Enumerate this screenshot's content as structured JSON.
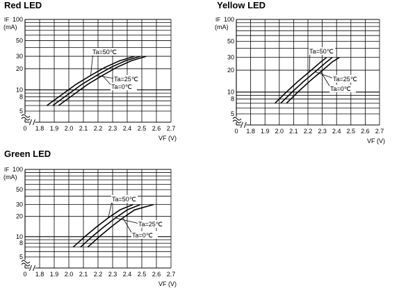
{
  "chart_data": [
    {
      "type": "line",
      "title": "Red LED",
      "ylabel_symbol": "IF",
      "ylabel_unit": "(mA)",
      "xlabel": "VF (V)",
      "x_ticks": [
        "0",
        "1.8",
        "1.9",
        "2.0",
        "2.1",
        "2.2",
        "2.3",
        "2.4",
        "2.5",
        "2.6",
        "2.7"
      ],
      "y_ticks": [
        "100",
        "50",
        "30",
        "20",
        "10",
        "8",
        "5"
      ],
      "xlim": [
        1.75,
        2.7
      ],
      "ylim": [
        4,
        100
      ],
      "y_scale": "log",
      "grid": true,
      "series": [
        {
          "name": "Ta=50℃",
          "x": [
            1.85,
            1.95,
            2.05,
            2.15,
            2.25,
            2.35,
            2.45
          ],
          "y": [
            6,
            8.5,
            12,
            16,
            21,
            26,
            30
          ]
        },
        {
          "name": "Ta=25℃",
          "x": [
            1.89,
            1.99,
            2.09,
            2.19,
            2.29,
            2.39,
            2.49
          ],
          "y": [
            6,
            8.5,
            12,
            16,
            21,
            26,
            30
          ]
        },
        {
          "name": "Ta=0℃",
          "x": [
            1.93,
            2.03,
            2.13,
            2.23,
            2.33,
            2.43,
            2.53
          ],
          "y": [
            6,
            8.5,
            12,
            16,
            21,
            26,
            30
          ]
        }
      ],
      "annotations": [
        "Ta=50℃",
        "Ta=25℃",
        "Ta=0℃"
      ]
    },
    {
      "type": "line",
      "title": "Yellow  LED",
      "ylabel_symbol": "IF",
      "ylabel_unit": "(mA)",
      "xlabel": "VF (V)",
      "x_ticks": [
        "0",
        "1.8",
        "1.9",
        "2.0",
        "2.1",
        "2.2",
        "2.3",
        "2.4",
        "2.5",
        "2.6",
        "2.7"
      ],
      "y_ticks": [
        "100",
        "50",
        "30",
        "20",
        "10",
        "8",
        "5"
      ],
      "xlim": [
        1.75,
        2.7
      ],
      "ylim": [
        4,
        100
      ],
      "y_scale": "log",
      "grid": true,
      "series": [
        {
          "name": "Ta=50℃",
          "x": [
            1.97,
            2.05,
            2.13,
            2.21,
            2.29,
            2.33
          ],
          "y": [
            7,
            10,
            14,
            19,
            26,
            30
          ]
        },
        {
          "name": "Ta=25℃",
          "x": [
            2.01,
            2.09,
            2.17,
            2.25,
            2.33,
            2.37
          ],
          "y": [
            7,
            10,
            14,
            19,
            26,
            30
          ]
        },
        {
          "name": "Ta=0℃",
          "x": [
            2.05,
            2.13,
            2.21,
            2.29,
            2.37,
            2.42
          ],
          "y": [
            7,
            10,
            14,
            19,
            26,
            30
          ]
        }
      ],
      "annotations": [
        "Ta=50℃",
        "Ta=25℃",
        "Ta=0℃"
      ]
    },
    {
      "type": "line",
      "title": "Green LED",
      "ylabel_symbol": "IF",
      "ylabel_unit": "(mA)",
      "xlabel": "VF (V)",
      "x_ticks": [
        "0",
        "1.8",
        "1.9",
        "2.0",
        "2.1",
        "2.2",
        "2.3",
        "2.4",
        "2.5",
        "2.6",
        "2.7"
      ],
      "y_ticks": [
        "100",
        "50",
        "30",
        "20",
        "10",
        "8",
        "5"
      ],
      "xlim": [
        1.75,
        2.7
      ],
      "ylim": [
        4,
        100
      ],
      "y_scale": "log",
      "grid": true,
      "series": [
        {
          "name": "Ta=50℃",
          "x": [
            2.03,
            2.11,
            2.19,
            2.27,
            2.35,
            2.44
          ],
          "y": [
            7,
            10,
            14,
            19,
            25,
            30
          ]
        },
        {
          "name": "Ta=25℃",
          "x": [
            2.08,
            2.16,
            2.24,
            2.32,
            2.4,
            2.49
          ],
          "y": [
            7,
            10,
            14,
            19,
            25,
            30
          ]
        },
        {
          "name": "Ta=0℃",
          "x": [
            2.13,
            2.21,
            2.29,
            2.37,
            2.45,
            2.58
          ],
          "y": [
            7,
            10,
            14,
            19,
            25,
            30
          ]
        }
      ],
      "annotations": [
        "Ta=50℃",
        "Ta=25℃",
        "Ta=0℃"
      ]
    }
  ]
}
